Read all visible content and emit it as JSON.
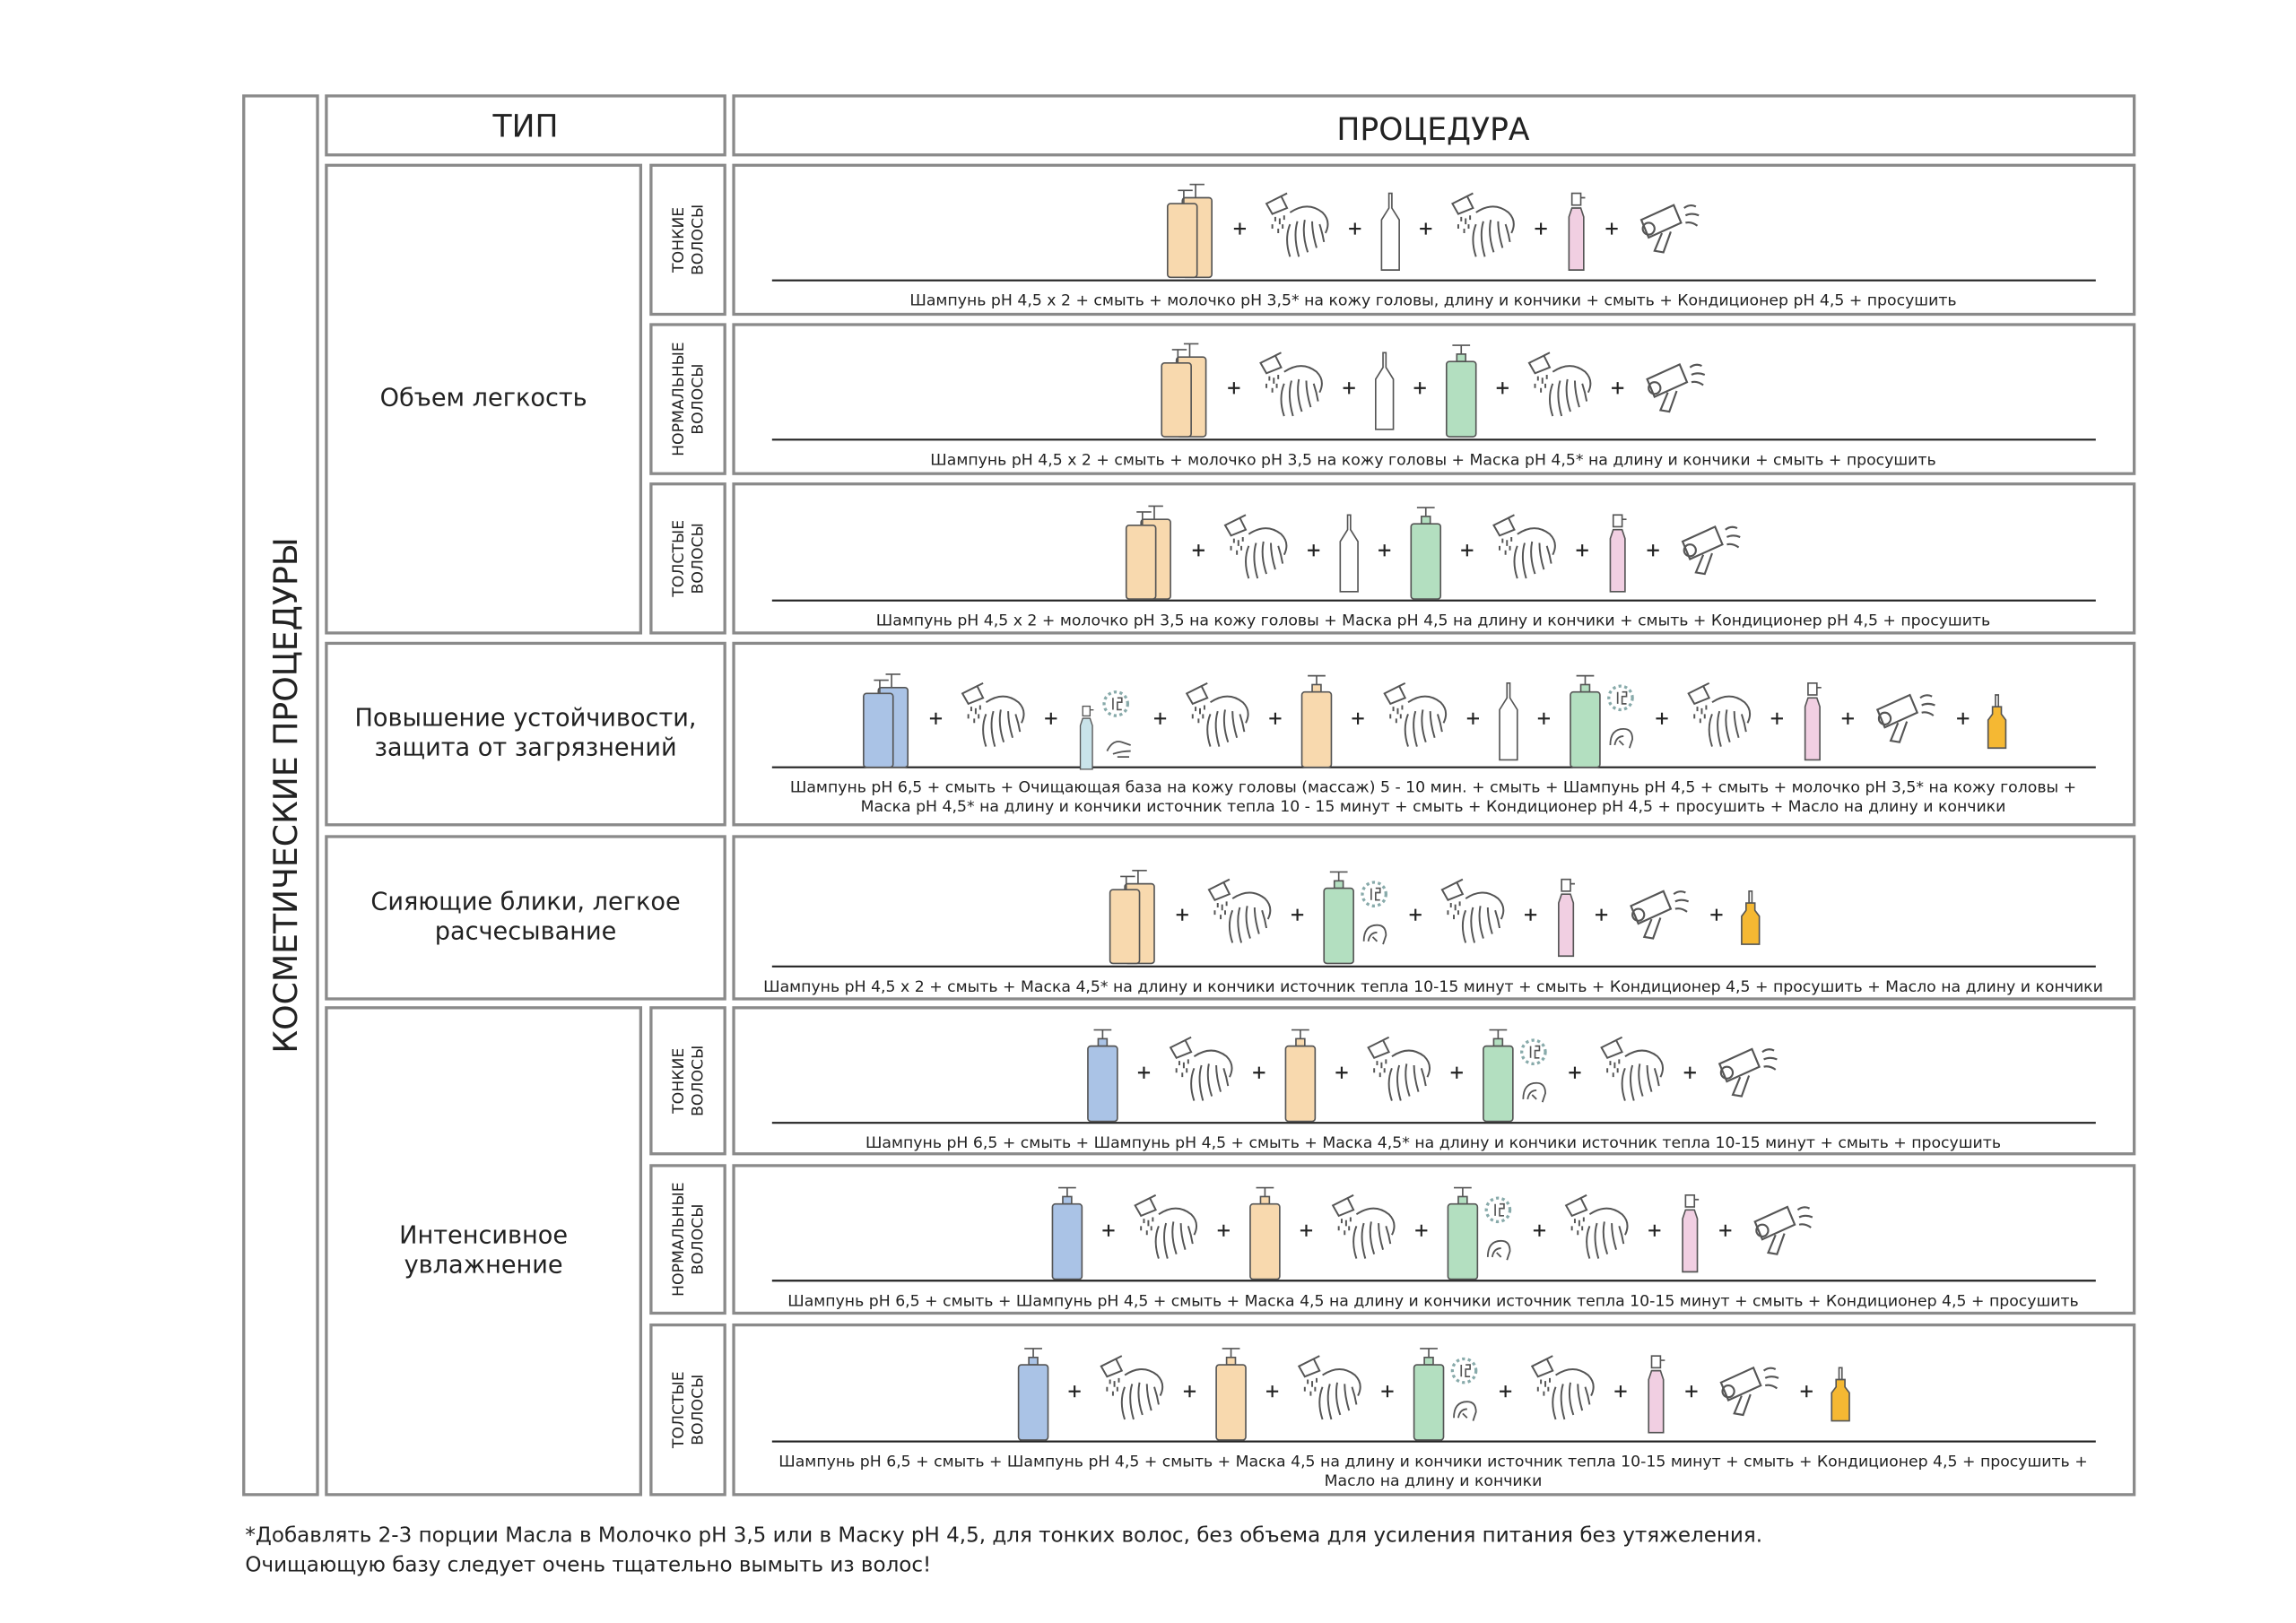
{
  "side_title": "КОСМЕТИЧЕСКИЕ ПРОЦЕДУРЫ",
  "header": {
    "type": "ТИП",
    "procedure": "ПРОЦЕДУРА"
  },
  "groups": [
    {
      "name": [
        "Объем легкость"
      ],
      "rows": [
        {
          "hair": [
            "ТОНКИЕ",
            "ВОЛОСЫ"
          ],
          "procedure": [
            "Шампунь pH 4,5 x 2 + смыть + молочко pH 3,5* на кожу головы, длину и кончики + смыть + Кондиционер pH 4,5 + просушить"
          ]
        },
        {
          "hair": [
            "НОРМАЛЬНЫЕ",
            "ВОЛОСЫ"
          ],
          "procedure": [
            "Шампунь pH 4,5 x 2 + смыть + молочко pH 3,5 на кожу головы + Маска pH 4,5* на длину и кончики + смыть + просушить"
          ]
        },
        {
          "hair": [
            "ТОЛСТЫЕ",
            "ВОЛОСЫ"
          ],
          "procedure": [
            "Шампунь pH 4,5 x 2 + молочко pH 3,5 на кожу головы + Маска pH 4,5 на длину и кончики + смыть + Кондиционер pH 4,5 + просушить"
          ]
        }
      ]
    },
    {
      "name": [
        "Повышение устойчивости,",
        "защита от загрязнений"
      ],
      "rows": [
        {
          "procedure": [
            "Шампунь pH 6,5 + смыть + Очищающая база на кожу головы (массаж) 5 - 10 мин. + смыть + Шампунь pH 4,5 + смыть + молочко pH 3,5* на кожу головы +",
            "Маска pH 4,5* на длину и кончики источник тепла 10 - 15 минут + смыть + Кондиционер pH 4,5 + просушить + Масло на длину и кончики"
          ]
        }
      ]
    },
    {
      "name": [
        "Сияющие блики, легкое",
        "расчесывание"
      ],
      "rows": [
        {
          "procedure": [
            "Шампунь pH 4,5 x 2 + смыть + Маска 4,5* на длину и кончики источник тепла 10-15 минут + смыть + Кондиционер 4,5 + просушить + Масло на длину и кончики"
          ]
        }
      ]
    },
    {
      "name": [
        "Интенсивное",
        "увлажнение"
      ],
      "rows": [
        {
          "hair": [
            "ТОНКИЕ",
            "ВОЛОСЫ"
          ],
          "procedure": [
            "Шампунь pH 6,5 + смыть + Шампунь pH 4,5 + смыть + Маска 4,5* на длину и кончики источник тепла 10-15 минут + смыть + просушить"
          ]
        },
        {
          "hair": [
            "НОРМАЛЬНЫЕ",
            "ВОЛОСЫ"
          ],
          "procedure": [
            "Шампунь pH 6,5 + смыть + Шампунь pH 4,5 + смыть + Маска 4,5 на длину и кончики источник тепла 10-15 минут + смыть + Кондиционер 4,5 + просушить"
          ]
        },
        {
          "hair": [
            "ТОЛСТЫЕ",
            "ВОЛОСЫ"
          ],
          "procedure": [
            "Шампунь pH 6,5 + смыть + Шампунь pH 4,5 + смыть + Маска 4,5 на длину и кончики источник тепла 10-15 минут + смыть + Кондиционер 4,5 + просушить +",
            "Масло на длину и кончики"
          ]
        }
      ]
    }
  ],
  "footnotes": [
    "*Добавлять 2-3 порции Масла в Молочко pH 3,5 или в Маску pH 4,5, для тонких волос, без объема для усиления питания без утяжеления.",
    "Очищающую базу следует очень тщательно вымыть из волос!"
  ]
}
